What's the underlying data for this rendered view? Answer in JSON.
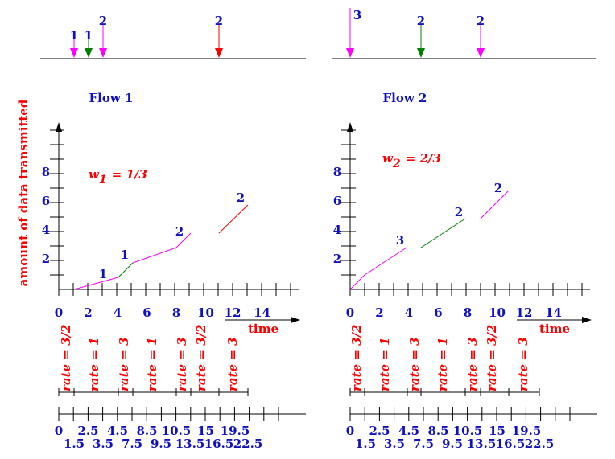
{
  "y_axis_label": "amount of data transmitted",
  "flows": [
    {
      "title": "Flow 1",
      "weight": {
        "symbol": "w",
        "subscript": "1",
        "value": "= 1/3"
      },
      "arrival_labels": [
        "1",
        "1",
        "2",
        "2"
      ],
      "y_labels": [
        "2",
        "4",
        "6",
        "8"
      ],
      "x_labels": [
        "0",
        "2",
        "4",
        "6",
        "8",
        "10",
        "12",
        "14"
      ],
      "x_axis_label": "time",
      "segment_labels": [
        "1",
        "1",
        "2",
        "2"
      ],
      "rates": [
        "rate = 3/2",
        "rate = 1",
        "rate = 3",
        "rate = 1",
        "rate = 3",
        "rate = 3/2",
        "rate = 3"
      ],
      "times_top": [
        "0",
        "2.5",
        "4.5",
        "8.5",
        "10.5",
        "15",
        "19.5"
      ],
      "times_bottom": [
        "1.5",
        "3.5",
        "7.5",
        "9.5",
        "13.5",
        "16.5",
        "22.5"
      ]
    },
    {
      "title": "Flow 2",
      "weight": {
        "symbol": "w",
        "subscript": "2",
        "value": "= 2/3"
      },
      "arrival_labels": [
        "3",
        "2",
        "2"
      ],
      "y_labels": [
        "2",
        "4",
        "6",
        "8"
      ],
      "x_labels": [
        "0",
        "2",
        "4",
        "6",
        "8",
        "10",
        "12",
        "14"
      ],
      "x_axis_label": "time",
      "segment_labels": [
        "3",
        "2",
        "2"
      ],
      "rates": [
        "rate = 3/2",
        "rate = 1",
        "rate = 3",
        "rate = 1",
        "rate = 3",
        "rate = 3/2",
        "rate = 3"
      ],
      "times_top": [
        "0",
        "2.5",
        "4.5",
        "8.5",
        "10.5",
        "15",
        "19.5"
      ],
      "times_bottom": [
        "1.5",
        "3.5",
        "7.5",
        "9.5",
        "13.5",
        "16.5",
        "22.5"
      ]
    }
  ]
}
